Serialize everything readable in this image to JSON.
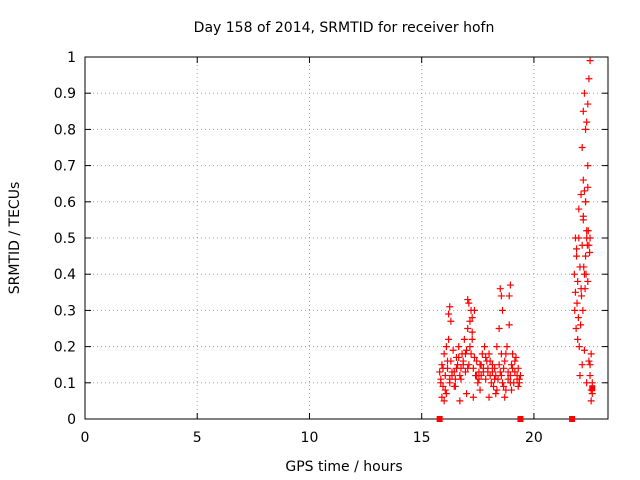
{
  "chart_data": {
    "type": "scatter",
    "title": "Day 158 of 2014, SRMTID for receiver hofn",
    "xlabel": "GPS time / hours",
    "ylabel": "SRMTID / TECUs",
    "xlim": [
      0,
      23.3
    ],
    "ylim": [
      0,
      1
    ],
    "x_ticks": [
      "0",
      "5",
      "10",
      "15",
      "20"
    ],
    "x_tick_values": [
      0,
      5,
      10,
      15,
      20
    ],
    "y_ticks": [
      "0",
      "0.1",
      "0.2",
      "0.3",
      "0.4",
      "0.5",
      "0.6",
      "0.7",
      "0.8",
      "0.9",
      "1"
    ],
    "y_tick_values": [
      0,
      0.1,
      0.2,
      0.3,
      0.4,
      0.5,
      0.6,
      0.7,
      0.8,
      0.9,
      1
    ],
    "grid": true,
    "marker_color": "#ff0000",
    "series": [
      {
        "marker": "plus",
        "x": [
          15.8,
          15.85,
          15.9,
          15.95,
          16.0,
          16.05,
          16.1,
          16.15,
          16.2,
          16.25,
          16.3,
          16.35,
          16.4,
          16.45,
          16.5,
          16.55,
          16.6,
          16.65,
          16.7,
          16.75,
          16.8,
          16.85,
          16.9,
          16.95,
          17.0,
          17.05,
          17.1,
          17.15,
          17.2,
          17.25,
          17.3,
          17.35,
          17.4,
          17.45,
          17.5,
          17.55,
          17.6,
          17.65,
          17.7,
          17.75,
          17.8,
          17.85,
          17.9,
          17.95,
          18.0,
          18.05,
          18.1,
          18.15,
          18.2,
          18.25,
          18.3,
          18.35,
          18.4,
          18.45,
          18.5,
          18.55,
          18.6,
          18.65,
          18.7,
          18.75,
          18.8,
          18.85,
          18.9,
          18.95,
          19.0,
          19.05,
          19.1,
          19.15,
          19.2,
          19.25,
          19.3,
          19.35,
          19.4,
          15.85,
          15.95,
          16.05,
          16.15,
          16.25,
          16.35,
          16.45,
          16.55,
          16.65,
          16.75,
          16.85,
          16.95,
          17.05,
          17.15,
          17.25,
          17.35,
          17.45,
          17.55,
          17.65,
          17.75,
          17.85,
          17.95,
          18.05,
          18.15,
          18.25,
          18.35,
          18.45,
          18.55,
          18.65,
          18.75,
          18.85,
          18.95,
          19.05,
          19.15,
          19.25,
          19.35,
          16.2,
          16.25,
          16.3,
          17.05,
          17.1,
          17.2,
          17.25,
          18.5,
          18.55,
          18.6,
          18.9,
          18.95,
          15.9,
          16.0,
          16.1,
          16.5,
          16.7,
          17.0,
          17.3,
          17.6,
          18.0,
          18.3,
          18.7,
          19.0,
          19.3
        ],
        "y": [
          0.13,
          0.11,
          0.15,
          0.09,
          0.18,
          0.12,
          0.2,
          0.14,
          0.22,
          0.1,
          0.16,
          0.12,
          0.19,
          0.13,
          0.11,
          0.17,
          0.15,
          0.2,
          0.12,
          0.14,
          0.18,
          0.16,
          0.22,
          0.13,
          0.19,
          0.25,
          0.15,
          0.27,
          0.18,
          0.22,
          0.14,
          0.3,
          0.12,
          0.16,
          0.1,
          0.13,
          0.15,
          0.12,
          0.18,
          0.14,
          0.2,
          0.11,
          0.16,
          0.13,
          0.18,
          0.12,
          0.1,
          0.15,
          0.09,
          0.14,
          0.12,
          0.2,
          0.11,
          0.25,
          0.13,
          0.18,
          0.1,
          0.14,
          0.16,
          0.08,
          0.2,
          0.11,
          0.26,
          0.12,
          0.15,
          0.18,
          0.1,
          0.13,
          0.17,
          0.11,
          0.14,
          0.1,
          0.12,
          0.1,
          0.14,
          0.08,
          0.16,
          0.11,
          0.13,
          0.09,
          0.14,
          0.17,
          0.11,
          0.15,
          0.18,
          0.14,
          0.2,
          0.24,
          0.17,
          0.12,
          0.11,
          0.15,
          0.13,
          0.17,
          0.14,
          0.16,
          0.13,
          0.11,
          0.08,
          0.15,
          0.12,
          0.09,
          0.18,
          0.13,
          0.1,
          0.14,
          0.16,
          0.12,
          0.11,
          0.29,
          0.31,
          0.27,
          0.33,
          0.32,
          0.3,
          0.28,
          0.36,
          0.34,
          0.3,
          0.34,
          0.37,
          0.06,
          0.05,
          0.07,
          0.09,
          0.05,
          0.07,
          0.06,
          0.08,
          0.06,
          0.07,
          0.06,
          0.08,
          0.09
        ]
      },
      {
        "marker": "plus",
        "x": [
          21.8,
          21.85,
          21.9,
          21.95,
          22.0,
          22.05,
          22.1,
          22.15,
          22.2,
          22.25,
          22.3,
          22.35,
          22.4,
          22.45,
          22.5,
          21.82,
          21.88,
          21.92,
          21.98,
          22.02,
          22.08,
          22.12,
          22.18,
          22.22,
          22.28,
          22.32,
          22.38,
          22.42,
          22.48,
          21.85,
          21.9,
          22.0,
          22.1,
          22.2,
          22.3,
          22.4,
          22.15,
          22.2,
          22.25,
          22.3,
          22.35,
          22.4,
          22.45,
          22.5,
          21.95,
          22.05,
          22.15,
          22.25,
          22.35,
          22.45,
          22.5,
          22.55,
          22.6,
          22.55,
          22.6,
          22.5,
          22.55,
          22.2,
          22.25,
          22.3,
          22.35,
          22.4
        ],
        "y": [
          0.4,
          0.35,
          0.45,
          0.38,
          0.5,
          0.42,
          0.36,
          0.48,
          0.55,
          0.4,
          0.45,
          0.5,
          0.38,
          0.48,
          0.5,
          0.3,
          0.25,
          0.32,
          0.28,
          0.2,
          0.26,
          0.34,
          0.3,
          0.42,
          0.36,
          0.4,
          0.48,
          0.52,
          0.46,
          0.5,
          0.47,
          0.58,
          0.62,
          0.66,
          0.6,
          0.64,
          0.75,
          0.85,
          0.9,
          0.8,
          0.82,
          0.7,
          0.94,
          0.99,
          0.22,
          0.12,
          0.15,
          0.19,
          0.1,
          0.16,
          0.15,
          0.08,
          0.1,
          0.05,
          0.07,
          0.12,
          0.18,
          0.56,
          0.63,
          0.6,
          0.52,
          0.87
        ]
      },
      {
        "marker": "square",
        "x": [
          15.8,
          19.4,
          21.7,
          22.6
        ],
        "y": [
          0,
          0,
          0,
          0.085
        ]
      }
    ]
  }
}
